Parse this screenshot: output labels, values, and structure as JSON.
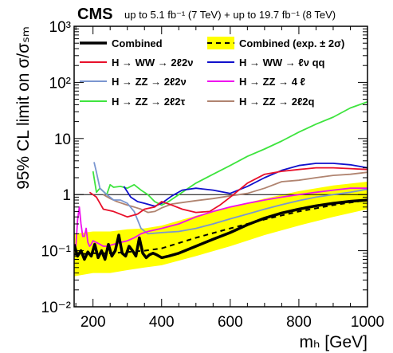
{
  "chart_data": {
    "type": "line",
    "title": "CMS",
    "subtitle": "up to 5.1 fb⁻¹ (7 TeV) + up to 19.7 fb⁻¹ (8 TeV)",
    "xlabel": "mₕ [GeV]",
    "ylabel": "95% CL limit on σ/σₛₘ",
    "xlim": [
      145,
      1000
    ],
    "ylim": [
      0.01,
      1000
    ],
    "yscale": "log",
    "x_ticks": [
      200,
      400,
      600,
      800,
      1000
    ],
    "x_tick_labels": [
      "200",
      "400",
      "600",
      "800",
      "1000"
    ],
    "y_ticks": [
      0.01,
      0.1,
      1,
      10,
      100,
      1000
    ],
    "y_tick_labels": [
      "10⁻²",
      "10⁻¹",
      "1",
      "10",
      "10²",
      "10³"
    ],
    "reference_line": 1,
    "legend_position": "top",
    "band": {
      "name": "Combined (exp. ± 2σ)",
      "color": "#ffff00",
      "x": [
        145,
        200,
        250,
        300,
        350,
        400,
        500,
        600,
        700,
        800,
        900,
        1000
      ],
      "lower": [
        0.035,
        0.04,
        0.04,
        0.045,
        0.05,
        0.055,
        0.08,
        0.12,
        0.19,
        0.28,
        0.4,
        0.55
      ],
      "upper": [
        0.2,
        0.22,
        0.22,
        0.24,
        0.25,
        0.28,
        0.42,
        0.6,
        0.85,
        1.15,
        1.45,
        1.7
      ]
    },
    "series": [
      {
        "name": "Combined",
        "color": "#000000",
        "dash": "",
        "width": 3.5,
        "x": [
          145,
          155,
          165,
          175,
          185,
          195,
          205,
          215,
          225,
          235,
          245,
          255,
          265,
          275,
          285,
          295,
          305,
          315,
          325,
          335,
          345,
          355,
          365,
          375,
          385,
          400,
          420,
          450,
          500,
          550,
          600,
          650,
          700,
          750,
          800,
          850,
          900,
          950,
          1000
        ],
        "y": [
          0.13,
          0.08,
          0.1,
          0.07,
          0.095,
          0.08,
          0.13,
          0.075,
          0.1,
          0.07,
          0.13,
          0.08,
          0.1,
          0.19,
          0.09,
          0.08,
          0.12,
          0.1,
          0.08,
          0.17,
          0.09,
          0.075,
          0.085,
          0.09,
          0.085,
          0.075,
          0.08,
          0.09,
          0.12,
          0.16,
          0.21,
          0.29,
          0.38,
          0.47,
          0.55,
          0.63,
          0.7,
          0.76,
          0.8
        ]
      },
      {
        "name": "Combined (exp. ± 2σ)",
        "color": "#000000",
        "dash": "6,5",
        "width": 2,
        "x": [
          145,
          200,
          250,
          300,
          350,
          400,
          500,
          600,
          700,
          800,
          900,
          1000
        ],
        "y": [
          0.085,
          0.09,
          0.09,
          0.095,
          0.1,
          0.11,
          0.17,
          0.25,
          0.36,
          0.5,
          0.65,
          0.8
        ]
      },
      {
        "name": "H → WW → 2ℓ2ν",
        "color": "#e8102a",
        "dash": "",
        "width": 1.8,
        "x": [
          190,
          210,
          230,
          260,
          300,
          330,
          350,
          380,
          400,
          430,
          460,
          500,
          540,
          570,
          600,
          650,
          700,
          750,
          800,
          850,
          900,
          950,
          1000
        ],
        "y": [
          1.1,
          0.9,
          0.55,
          0.5,
          0.4,
          0.45,
          0.55,
          0.6,
          0.75,
          0.65,
          0.55,
          0.48,
          0.5,
          0.65,
          0.9,
          1.6,
          2.3,
          2.6,
          2.8,
          3.0,
          3.0,
          2.9,
          2.8
        ]
      },
      {
        "name": "H → WW → ℓν qq",
        "color": "#1010cc",
        "dash": "",
        "width": 1.8,
        "x": [
          290,
          310,
          330,
          350,
          380,
          400,
          430,
          460,
          500,
          550,
          600,
          650,
          700,
          750,
          800,
          850,
          900,
          950,
          1000
        ],
        "y": [
          1.4,
          0.9,
          0.75,
          0.7,
          0.62,
          0.7,
          0.95,
          1.2,
          1.3,
          1.2,
          1.05,
          1.4,
          2.0,
          2.7,
          3.3,
          3.6,
          3.6,
          3.4,
          3.0
        ]
      },
      {
        "name": "H → ZZ → 2ℓ2ν",
        "color": "#7a96d0",
        "dash": "",
        "width": 1.8,
        "x": [
          203,
          210,
          220,
          240,
          260,
          280,
          300,
          320,
          340,
          360,
          400,
          450,
          500,
          550,
          600,
          650,
          700,
          750,
          800,
          850,
          900,
          950,
          1000
        ],
        "y": [
          3.8,
          2.5,
          1.3,
          1.0,
          0.8,
          0.8,
          0.7,
          0.5,
          0.25,
          0.2,
          0.21,
          0.22,
          0.25,
          0.3,
          0.37,
          0.45,
          0.55,
          0.66,
          0.78,
          0.9,
          1.0,
          1.1,
          1.25
        ]
      },
      {
        "name": "H → ZZ → 4ℓ",
        "color": "#ee10ee",
        "dash": "",
        "width": 1.8,
        "x": [
          145,
          150,
          155,
          160,
          165,
          170,
          175,
          180,
          185,
          190,
          195,
          200,
          210,
          220,
          230,
          240,
          260,
          280,
          300,
          320,
          340,
          360,
          400,
          450,
          500,
          550,
          600,
          650,
          700,
          750,
          800,
          850,
          900,
          950,
          1000
        ],
        "y": [
          0.13,
          0.12,
          0.35,
          0.6,
          0.3,
          0.18,
          0.18,
          0.25,
          0.14,
          0.12,
          0.13,
          0.15,
          0.14,
          0.13,
          0.12,
          0.12,
          0.13,
          0.14,
          0.15,
          0.17,
          0.2,
          0.22,
          0.25,
          0.3,
          0.4,
          0.5,
          0.6,
          0.7,
          0.8,
          0.9,
          1.0,
          1.1,
          1.2,
          1.3,
          1.3
        ]
      },
      {
        "name": "H → ZZ → 2ℓ2τ",
        "color": "#3ee43e",
        "dash": "",
        "width": 1.8,
        "x": [
          200,
          210,
          220,
          240,
          250,
          260,
          280,
          300,
          320,
          340,
          360,
          380,
          400,
          420,
          450,
          500,
          550,
          600,
          650,
          700,
          750,
          800,
          850,
          900,
          950,
          1000
        ],
        "y": [
          2.6,
          1.1,
          1.3,
          1.0,
          1.5,
          1.35,
          1.4,
          1.3,
          1.5,
          1.2,
          1.0,
          0.75,
          0.65,
          0.75,
          1.0,
          1.6,
          2.3,
          3.3,
          4.8,
          6.5,
          9.0,
          13.0,
          18.0,
          24.0,
          35.0,
          45.0
        ]
      },
      {
        "name": "H → ZZ → 2ℓ2q",
        "color": "#b08470",
        "dash": "",
        "width": 1.8,
        "x": [
          230,
          250,
          270,
          300,
          320,
          340,
          360,
          380,
          400,
          430,
          460,
          500,
          550,
          600,
          650,
          700,
          750,
          800,
          850,
          900,
          950,
          1000
        ],
        "y": [
          1.0,
          0.85,
          0.75,
          0.65,
          0.6,
          0.55,
          0.48,
          0.5,
          0.58,
          0.68,
          0.72,
          0.78,
          0.85,
          0.95,
          1.05,
          1.3,
          1.7,
          1.8,
          2.0,
          2.2,
          2.3,
          2.5
        ]
      }
    ],
    "legend": [
      {
        "label": "Combined",
        "series": 0
      },
      {
        "label": "Combined (exp. ± 2σ)",
        "series": 1
      },
      {
        "label": "H → WW → 2ℓ2ν",
        "series": 2
      },
      {
        "label": "H → WW →   ℓν qq",
        "series": 3
      },
      {
        "label": "H → ZZ → 2ℓ2ν",
        "series": 4
      },
      {
        "label": "H → ZZ → 4 ℓ",
        "series": 5
      },
      {
        "label": "H → ZZ → 2ℓ2τ",
        "series": 6
      },
      {
        "label": "H → ZZ → 2ℓ2q",
        "series": 7
      }
    ]
  }
}
